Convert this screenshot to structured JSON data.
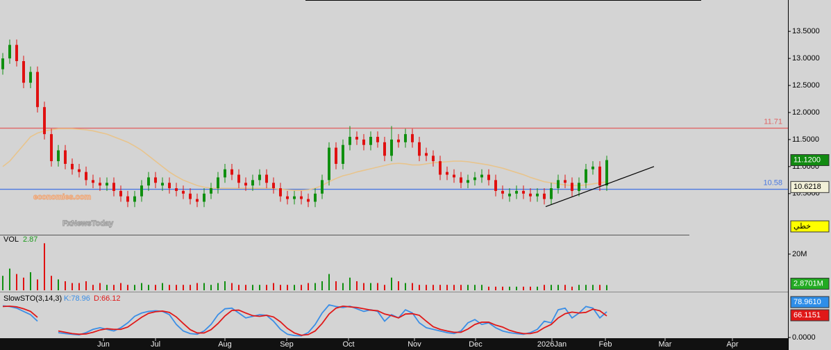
{
  "chart_data": [
    {
      "type": "candlestick",
      "xlim": [
        -0.4,
        113.1
      ],
      "ylim": [
        9.74,
        14.08
      ],
      "yticks": [
        {
          "value": 10.5,
          "label": "10.5000"
        },
        {
          "value": 11,
          "label": "11.0000"
        },
        {
          "value": 11.5,
          "label": "11.5000"
        },
        {
          "value": 12,
          "label": "12.0000"
        },
        {
          "value": 12.5,
          "label": "12.5000"
        },
        {
          "value": 13,
          "label": "13.0000"
        },
        {
          "value": 13.5,
          "label": "13.5000"
        }
      ],
      "up_color": "#0f8f0f",
      "down_color": "#e01010",
      "ohlc": [
        [
          12.8,
          13.1,
          12.7,
          13.0
        ],
        [
          13.0,
          13.35,
          12.9,
          13.25
        ],
        [
          13.25,
          13.35,
          12.85,
          12.95
        ],
        [
          12.95,
          13.05,
          12.45,
          12.55
        ],
        [
          12.55,
          12.85,
          12.45,
          12.75
        ],
        [
          12.75,
          12.85,
          12.0,
          12.1
        ],
        [
          12.1,
          12.2,
          11.5,
          11.6
        ],
        [
          11.6,
          11.7,
          11.0,
          11.1
        ],
        [
          11.1,
          11.4,
          11.0,
          11.3
        ],
        [
          11.3,
          11.4,
          10.95,
          11.05
        ],
        [
          11.05,
          11.15,
          10.85,
          10.95
        ],
        [
          10.95,
          11.05,
          10.8,
          10.9
        ],
        [
          10.9,
          11.0,
          10.65,
          10.75
        ],
        [
          10.75,
          10.85,
          10.6,
          10.7
        ],
        [
          10.7,
          10.8,
          10.55,
          10.65
        ],
        [
          10.65,
          10.8,
          10.55,
          10.7
        ],
        [
          10.7,
          10.8,
          10.45,
          10.55
        ],
        [
          10.55,
          10.65,
          10.35,
          10.45
        ],
        [
          10.45,
          10.55,
          10.25,
          10.35
        ],
        [
          10.35,
          10.55,
          10.25,
          10.45
        ],
        [
          10.45,
          10.75,
          10.35,
          10.65
        ],
        [
          10.65,
          10.9,
          10.55,
          10.8
        ],
        [
          10.8,
          10.9,
          10.6,
          10.7
        ],
        [
          10.65,
          10.8,
          10.55,
          10.7
        ],
        [
          10.7,
          10.8,
          10.5,
          10.6
        ],
        [
          10.6,
          10.7,
          10.45,
          10.55
        ],
        [
          10.55,
          10.65,
          10.4,
          10.5
        ],
        [
          10.5,
          10.6,
          10.3,
          10.4
        ],
        [
          10.4,
          10.5,
          10.25,
          10.35
        ],
        [
          10.35,
          10.6,
          10.25,
          10.5
        ],
        [
          10.5,
          10.7,
          10.4,
          10.6
        ],
        [
          10.6,
          10.9,
          10.5,
          10.8
        ],
        [
          10.8,
          11.05,
          10.7,
          10.95
        ],
        [
          10.95,
          11.05,
          10.75,
          10.85
        ],
        [
          10.85,
          10.95,
          10.6,
          10.7
        ],
        [
          10.7,
          10.8,
          10.55,
          10.65
        ],
        [
          10.65,
          10.85,
          10.55,
          10.75
        ],
        [
          10.75,
          10.95,
          10.65,
          10.85
        ],
        [
          10.85,
          10.95,
          10.6,
          10.7
        ],
        [
          10.7,
          10.8,
          10.5,
          10.6
        ],
        [
          10.6,
          10.7,
          10.35,
          10.45
        ],
        [
          10.45,
          10.55,
          10.3,
          10.4
        ],
        [
          10.4,
          10.55,
          10.3,
          10.45
        ],
        [
          10.45,
          10.55,
          10.3,
          10.4
        ],
        [
          10.4,
          10.5,
          10.25,
          10.35
        ],
        [
          10.35,
          10.6,
          10.25,
          10.5
        ],
        [
          10.5,
          10.85,
          10.4,
          10.75
        ],
        [
          10.75,
          11.45,
          10.65,
          11.35
        ],
        [
          11.35,
          11.45,
          10.95,
          11.05
        ],
        [
          11.05,
          11.5,
          10.95,
          11.4
        ],
        [
          11.4,
          11.75,
          11.3,
          11.55
        ],
        [
          11.55,
          11.65,
          11.4,
          11.5
        ],
        [
          11.5,
          11.6,
          11.3,
          11.4
        ],
        [
          11.4,
          11.65,
          11.3,
          11.55
        ],
        [
          11.55,
          11.65,
          11.35,
          11.45
        ],
        [
          11.45,
          11.55,
          11.1,
          11.2
        ],
        [
          11.2,
          11.75,
          11.1,
          11.5
        ],
        [
          11.5,
          11.6,
          11.35,
          11.45
        ],
        [
          11.45,
          11.7,
          11.35,
          11.6
        ],
        [
          11.6,
          11.7,
          11.35,
          11.45
        ],
        [
          11.45,
          11.55,
          11.1,
          11.2
        ],
        [
          11.25,
          11.35,
          11.1,
          11.2
        ],
        [
          11.2,
          11.3,
          11.0,
          11.1
        ],
        [
          11.1,
          11.2,
          10.75,
          10.85
        ],
        [
          10.9,
          11.0,
          10.75,
          10.85
        ],
        [
          10.85,
          10.95,
          10.7,
          10.8
        ],
        [
          10.8,
          10.9,
          10.6,
          10.7
        ],
        [
          10.7,
          10.85,
          10.6,
          10.75
        ],
        [
          10.75,
          10.9,
          10.65,
          10.8
        ],
        [
          10.8,
          10.95,
          10.7,
          10.85
        ],
        [
          10.85,
          10.95,
          10.65,
          10.75
        ],
        [
          10.75,
          10.85,
          10.45,
          10.55
        ],
        [
          10.55,
          10.65,
          10.4,
          10.5
        ],
        [
          10.45,
          10.6,
          10.35,
          10.5
        ],
        [
          10.5,
          10.65,
          10.4,
          10.55
        ],
        [
          10.55,
          10.65,
          10.4,
          10.5
        ],
        [
          10.5,
          10.6,
          10.35,
          10.45
        ],
        [
          10.45,
          10.6,
          10.35,
          10.5
        ],
        [
          10.5,
          10.6,
          10.3,
          10.4
        ],
        [
          10.4,
          10.7,
          10.3,
          10.6
        ],
        [
          10.6,
          10.85,
          10.5,
          10.75
        ],
        [
          10.75,
          10.85,
          10.6,
          10.7
        ],
        [
          10.7,
          10.8,
          10.45,
          10.55
        ],
        [
          10.55,
          10.8,
          10.45,
          10.7
        ],
        [
          10.7,
          11.05,
          10.6,
          10.95
        ],
        [
          10.95,
          11.1,
          10.85,
          11.0
        ],
        [
          11.0,
          11.1,
          10.55,
          10.65
        ],
        [
          10.65,
          11.2,
          10.55,
          11.12
        ]
      ],
      "ma": {
        "color": "#e8c48c",
        "values": [
          11.0,
          11.1,
          11.25,
          11.4,
          11.55,
          11.62,
          11.66,
          11.68,
          11.7,
          11.7,
          11.7,
          11.69,
          11.68,
          11.66,
          11.63,
          11.6,
          11.55,
          11.5,
          11.45,
          11.38,
          11.3,
          11.2,
          11.1,
          11.0,
          10.9,
          10.82,
          10.75,
          10.7,
          10.65,
          10.62,
          10.6,
          10.6,
          10.6,
          10.6,
          10.6,
          10.6,
          10.6,
          10.6,
          10.6,
          10.6,
          10.58,
          10.57,
          10.56,
          10.56,
          10.57,
          10.6,
          10.65,
          10.72,
          10.78,
          10.83,
          10.86,
          10.9,
          10.93,
          10.96,
          10.99,
          11.02,
          11.05,
          11.06,
          11.05,
          11.03,
          11.03,
          11.05,
          11.07,
          11.08,
          11.09,
          11.1,
          11.1,
          11.09,
          11.07,
          11.05,
          11.03,
          11.0,
          10.97,
          10.93,
          10.89,
          10.85,
          10.8,
          10.76,
          10.72,
          10.7,
          10.68,
          10.66,
          10.65,
          10.65,
          10.66,
          10.68,
          10.7,
          10.72
        ]
      },
      "levels": [
        {
          "value": 11.71,
          "color": "#e06666"
        },
        {
          "value": 10.58,
          "color": "#4a78e0"
        }
      ],
      "trendline": {
        "x": [
          78.2,
          93.8
        ],
        "y": [
          10.26,
          11.0
        ]
      },
      "last_price": {
        "value": 11.12,
        "label": "11.1200"
      },
      "marker_price": 10.6218,
      "mode_button": "خطي",
      "watermarks": [
        "economies.com",
        "FxNewsToday"
      ]
    },
    {
      "type": "volume",
      "title": "VOL",
      "legend_value": 2.87,
      "xlim": [
        -0.4,
        113.1
      ],
      "ylim": [
        0,
        28.8
      ],
      "yticks": [
        {
          "value": 20,
          "label": "20M"
        }
      ],
      "last_label": {
        "value": 2.8701,
        "label": "2.8701M"
      },
      "values": [
        8,
        12,
        9,
        7,
        10,
        6,
        26,
        8,
        6,
        5,
        4,
        4,
        5,
        3,
        4,
        3,
        3,
        4,
        3,
        3,
        4,
        3,
        3,
        4,
        3,
        3,
        3,
        3,
        4,
        4,
        3,
        4,
        5,
        4,
        3,
        3,
        3,
        3,
        3,
        4,
        3,
        3,
        3,
        3,
        4,
        4,
        5,
        9,
        5,
        4,
        7,
        5,
        4,
        4,
        4,
        3,
        7,
        5,
        4,
        4,
        3,
        3,
        3,
        3,
        3,
        3,
        3,
        3,
        3,
        3,
        2,
        2,
        2,
        2,
        2,
        2,
        2,
        2,
        3,
        3,
        3,
        3,
        2,
        3,
        3,
        3,
        3,
        2.87
      ]
    },
    {
      "type": "stochastic",
      "title": "SlowSTO(3,14,3)",
      "xlim": [
        -0.4,
        113.1
      ],
      "ylim": [
        0,
        132
      ],
      "yticks": [
        {
          "value": 0,
          "label": "0.0000"
        }
      ],
      "xticks": [
        {
          "value": 14.5,
          "label": "Jun"
        },
        {
          "value": 22,
          "label": "Jul"
        },
        {
          "value": 32,
          "label": "Aug"
        },
        {
          "value": 40.9,
          "label": "Sep"
        },
        {
          "value": 49.8,
          "label": "Oct"
        },
        {
          "value": 59.3,
          "label": "Nov"
        },
        {
          "value": 68.1,
          "label": "Dec"
        },
        {
          "value": 79.1,
          "label": "2026Jan"
        },
        {
          "value": 86.8,
          "label": "Feb"
        },
        {
          "value": 95.4,
          "label": "Mar"
        },
        {
          "value": 105.1,
          "label": "Apr"
        }
      ],
      "series": [
        {
          "name": "K:78.96",
          "color": "#3a8ee6",
          "box": {
            "value": 78.961,
            "label": "78.9610"
          },
          "values": [
            97,
            95,
            90,
            80,
            70,
            50,
            null,
            null,
            15,
            12,
            10,
            8,
            15,
            25,
            30,
            25,
            20,
            30,
            45,
            65,
            75,
            80,
            82,
            80,
            70,
            40,
            20,
            12,
            10,
            20,
            40,
            70,
            88,
            90,
            75,
            60,
            65,
            70,
            68,
            50,
            25,
            10,
            6,
            5,
            15,
            40,
            75,
            100,
            95,
            92,
            96,
            88,
            80,
            85,
            80,
            50,
            70,
            60,
            85,
            75,
            45,
            30,
            25,
            20,
            15,
            12,
            20,
            45,
            55,
            40,
            45,
            30,
            20,
            15,
            12,
            10,
            15,
            25,
            50,
            45,
            85,
            90,
            60,
            75,
            95,
            90,
            60,
            78.96
          ]
        },
        {
          "name": "D:66.12",
          "color": "#e01818",
          "box": {
            "value": 66.1151,
            "label": "66.1151"
          },
          "values": [
            95,
            96,
            94,
            88,
            80,
            62,
            null,
            null,
            20,
            16,
            12,
            10,
            11,
            16,
            23,
            27,
            25,
            25,
            32,
            47,
            62,
            74,
            79,
            81,
            77,
            63,
            43,
            24,
            14,
            14,
            24,
            43,
            66,
            83,
            84,
            75,
            67,
            65,
            68,
            63,
            48,
            28,
            14,
            7,
            9,
            20,
            43,
            72,
            90,
            96,
            94,
            92,
            88,
            84,
            82,
            72,
            67,
            60,
            72,
            73,
            68,
            50,
            33,
            25,
            20,
            16,
            16,
            26,
            40,
            47,
            47,
            38,
            32,
            22,
            16,
            12,
            12,
            17,
            30,
            40,
            60,
            73,
            78,
            75,
            77,
            87,
            82,
            66.12
          ]
        }
      ]
    }
  ]
}
